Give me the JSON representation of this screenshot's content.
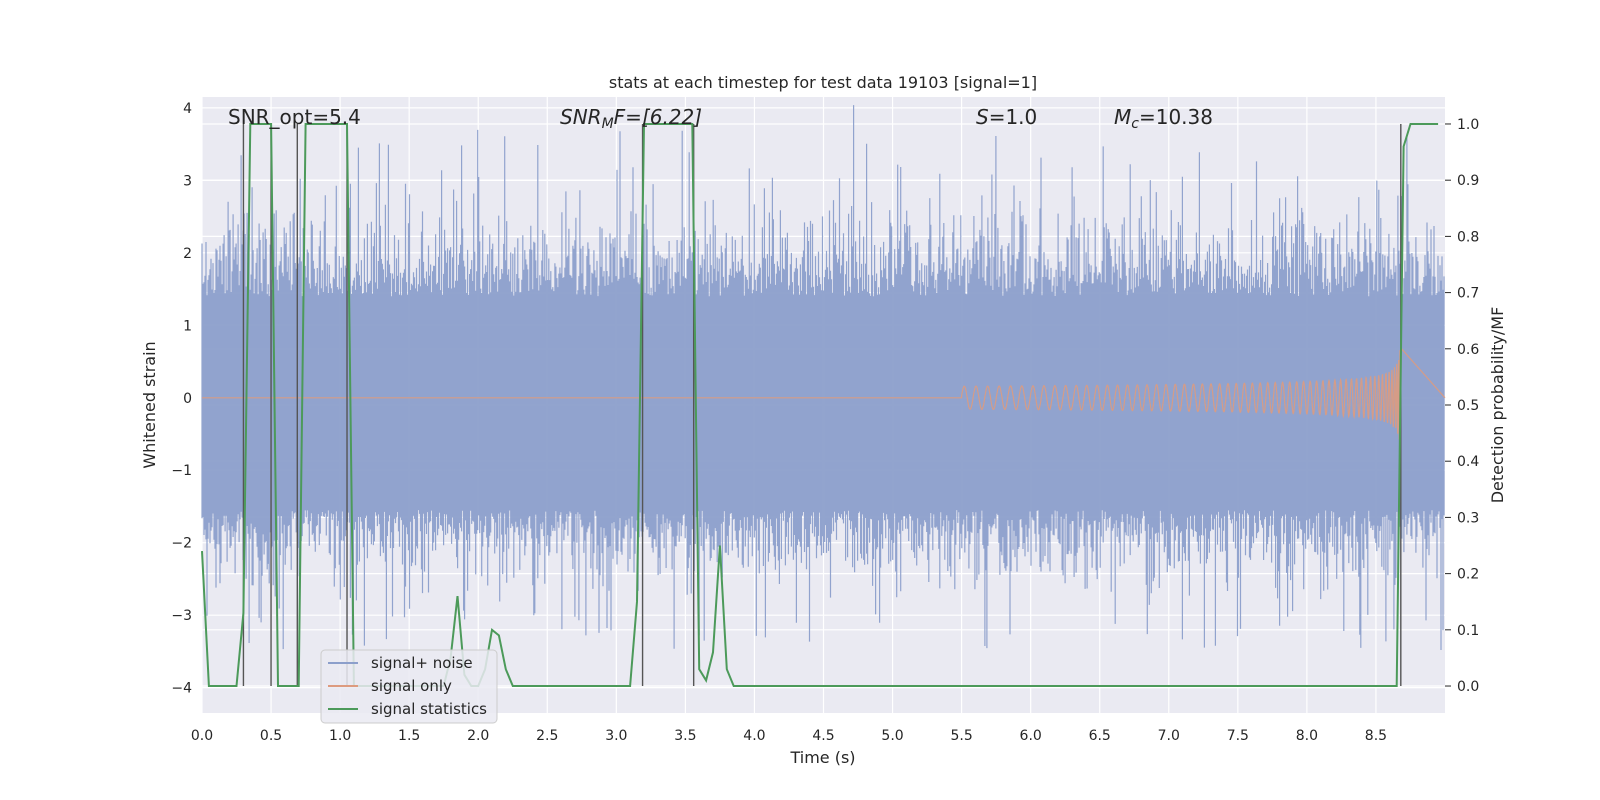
{
  "chart_data": {
    "type": "line",
    "title": "stats at each timestep for test data 19103 [signal=1]",
    "xlabel": "Time (s)",
    "ylabel_left": "Whitened strain",
    "ylabel_right": "Detection probability/MF",
    "xlim": [
      0.0,
      9.0
    ],
    "ylim_left": [
      -4.35,
      4.15
    ],
    "ylim_right": [
      -0.048,
      1.048
    ],
    "x_ticks": [
      0.0,
      0.5,
      1.0,
      1.5,
      2.0,
      2.5,
      3.0,
      3.5,
      4.0,
      4.5,
      5.0,
      5.5,
      6.0,
      6.5,
      7.0,
      7.5,
      8.0,
      8.5
    ],
    "x_tick_labels": [
      "0.0",
      "0.5",
      "1.0",
      "1.5",
      "2.0",
      "2.5",
      "3.0",
      "3.5",
      "4.0",
      "4.5",
      "5.0",
      "5.5",
      "6.0",
      "6.5",
      "7.0",
      "7.5",
      "8.0",
      "8.5"
    ],
    "y_left_ticks": [
      -4,
      -3,
      -2,
      -1,
      0,
      1,
      2,
      3,
      4
    ],
    "y_left_tick_labels": [
      "−4",
      "−3",
      "−2",
      "−1",
      "0",
      "1",
      "2",
      "3",
      "4"
    ],
    "y_right_ticks": [
      0.0,
      0.1,
      0.2,
      0.3,
      0.4,
      0.5,
      0.6,
      0.7,
      0.8,
      0.9,
      1.0
    ],
    "y_right_tick_labels": [
      "0.0",
      "0.1",
      "0.2",
      "0.3",
      "0.4",
      "0.5",
      "0.6",
      "0.7",
      "0.8",
      "0.9",
      "1.0"
    ],
    "grid": true,
    "legend_position": "lower-left",
    "annotations": {
      "snr_opt": "SNR_opt=5.4",
      "snr_mf_main": "SNR",
      "snr_mf_sub": "M",
      "snr_mf_rest": "F=[6.22]",
      "s_main": "S",
      "s_rest": "=1.0",
      "mc_main": "M",
      "mc_sub": "c",
      "mc_rest": "=10.38"
    },
    "series": [
      {
        "name": "signal+ noise",
        "axis": "left",
        "color": "#8c9fcb",
        "description_values": {
          "typical_amplitude": 1.4,
          "peak_max": 3.75,
          "peak_min": -4.0
        }
      },
      {
        "name": "signal only",
        "axis": "left",
        "color": "#dd9b7f",
        "chirp_start": 5.5,
        "chirp_end": 8.68,
        "peak_amplitude": 0.82
      },
      {
        "name": "signal statistics",
        "axis": "right",
        "color": "#4c9a5a",
        "x": [
          0.0,
          0.05,
          0.1,
          0.15,
          0.2,
          0.25,
          0.3,
          0.35,
          0.4,
          0.45,
          0.5,
          0.55,
          0.6,
          0.65,
          0.7,
          0.75,
          0.8,
          0.85,
          0.9,
          0.95,
          1.0,
          1.05,
          1.1,
          1.15,
          1.2,
          1.25,
          1.3,
          1.35,
          1.4,
          1.45,
          1.5,
          1.55,
          1.6,
          1.65,
          1.7,
          1.75,
          1.8,
          1.85,
          1.9,
          1.95,
          2.0,
          2.05,
          2.1,
          2.15,
          2.2,
          2.25,
          2.3,
          2.35,
          2.4,
          3.0,
          3.1,
          3.15,
          3.2,
          3.25,
          3.3,
          3.35,
          3.4,
          3.45,
          3.5,
          3.55,
          3.6,
          3.65,
          3.7,
          3.75,
          3.8,
          3.85,
          3.9,
          3.95,
          4.0,
          8.5,
          8.6,
          8.65,
          8.7,
          8.75,
          8.8,
          8.85,
          8.9,
          8.95
        ],
        "y": [
          0.24,
          0.0,
          0.0,
          0.0,
          0.0,
          0.0,
          0.13,
          1.0,
          1.0,
          1.0,
          1.0,
          0.0,
          0.0,
          0.0,
          0.0,
          1.0,
          1.0,
          1.0,
          1.0,
          1.0,
          1.0,
          1.0,
          0.0,
          0.0,
          0.0,
          0.0,
          0.0,
          0.0,
          0.0,
          0.0,
          0.0,
          0.0,
          0.0,
          0.0,
          0.0,
          0.0,
          0.05,
          0.16,
          0.02,
          0.0,
          0.0,
          0.03,
          0.1,
          0.09,
          0.03,
          0.0,
          0.0,
          0.0,
          0.0,
          0.0,
          0.0,
          0.15,
          1.0,
          1.0,
          1.0,
          1.0,
          1.0,
          1.0,
          1.0,
          1.0,
          0.03,
          0.01,
          0.06,
          0.25,
          0.03,
          0.0,
          0.0,
          0.0,
          0.0,
          0.0,
          0.0,
          0.0,
          0.96,
          1.0,
          1.0,
          1.0,
          1.0,
          1.0
        ]
      }
    ],
    "vertical_markers": [
      0.3,
      0.5,
      0.69,
      1.05,
      3.19,
      3.56,
      8.68
    ]
  }
}
